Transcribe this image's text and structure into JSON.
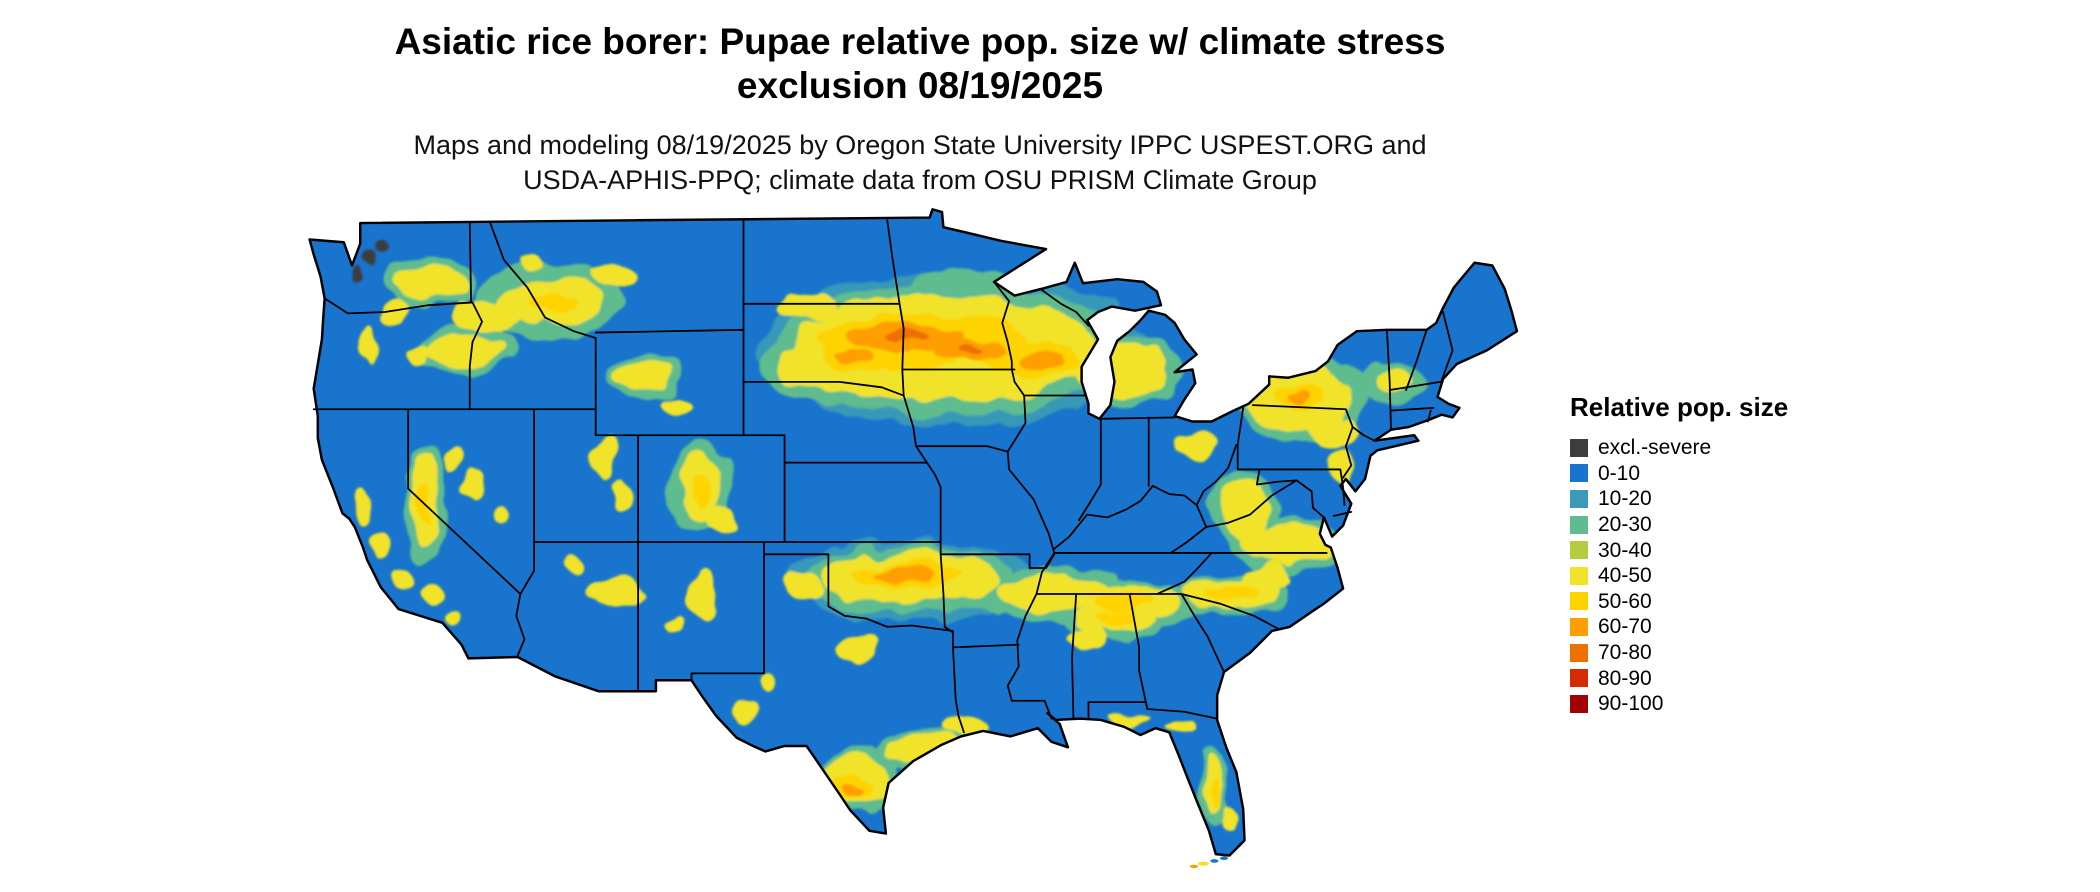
{
  "figure": {
    "title_line1": "Asiatic rice borer: Pupae relative pop. size w/ climate stress",
    "title_line2": "exclusion 08/19/2025",
    "subtitle_line1": "Maps and modeling 08/19/2025 by Oregon State University IPPC USPEST.ORG and",
    "subtitle_line2": "USDA-APHIS-PPQ; climate data from OSU PRISM Climate Group"
  },
  "map": {
    "base_color": "#1874CD",
    "boundary_color": "#000000",
    "exclusion_color": "#3D3D3D"
  },
  "legend": {
    "title": "Relative pop. size",
    "items": [
      {
        "label": "excl.-severe",
        "color": "#3D3D3D"
      },
      {
        "label": "0-10",
        "color": "#1874CD"
      },
      {
        "label": "10-20",
        "color": "#3A9AB8"
      },
      {
        "label": "20-30",
        "color": "#5FBC8F"
      },
      {
        "label": "30-40",
        "color": "#B5CC3F"
      },
      {
        "label": "40-50",
        "color": "#F0E32A"
      },
      {
        "label": "50-60",
        "color": "#FFD300"
      },
      {
        "label": "60-70",
        "color": "#FF9E00"
      },
      {
        "label": "70-80",
        "color": "#EE7000"
      },
      {
        "label": "80-90",
        "color": "#D42B04"
      },
      {
        "label": "90-100",
        "color": "#A40000"
      }
    ]
  }
}
